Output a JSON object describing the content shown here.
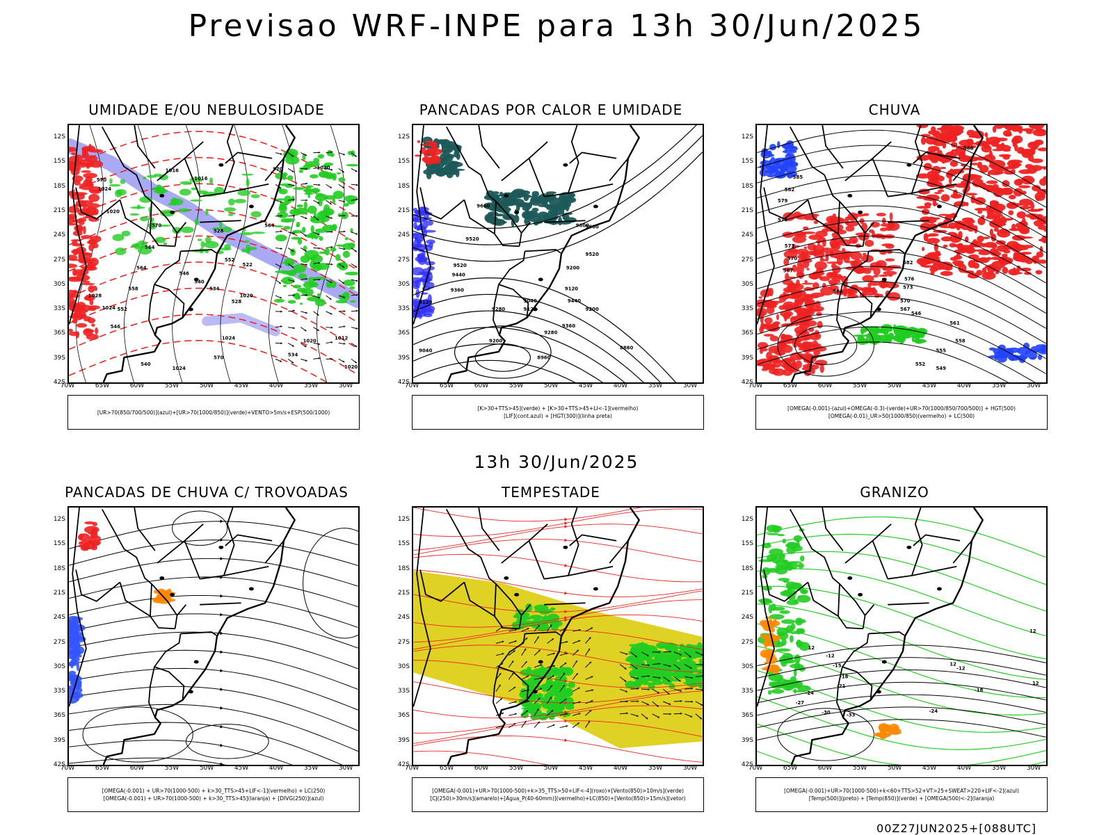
{
  "main_title": "Previsao WRF-INPE  para 13h 30/Jun/2025",
  "sub_title": "13h 30/Jun/2025",
  "footer": "00Z27JUN2025+[088UTC]",
  "lat_labels": [
    "12S",
    "15S",
    "18S",
    "21S",
    "24S",
    "27S",
    "30S",
    "33S",
    "36S",
    "39S",
    "42S"
  ],
  "lon_labels": [
    "70W",
    "65W",
    "60W",
    "55W",
    "50W",
    "45W",
    "40W",
    "35W",
    "30W"
  ],
  "panels": [
    {
      "title": "UMIDADE E/OU NEBULOSIDADE",
      "legend": [
        "[UR>70(850/700/500)](azul)+[UR>70(1000/850)](verde)+VENTO>5m/s+ESP(500/1000)"
      ],
      "contour_labels": [
        "1016",
        "1016",
        "1020",
        "1020",
        "1024",
        "1020",
        "1024",
        "1028",
        "1024",
        "1020",
        "1012",
        "1020",
        "1024",
        "570",
        "570",
        "564",
        "564",
        "558",
        "552",
        "546",
        "540",
        "534",
        "528",
        "522",
        "552",
        "546",
        "540",
        "534",
        "528",
        "570",
        "570",
        "564"
      ]
    },
    {
      "title": "PANCADAS POR CALOR E UMIDADE",
      "legend": [
        "[K>30+TTS>45](verde) + [K>30+TTS>45+LI<-1](vermelho)",
        "[LIF](cont.azul) + [HGT(300)](linha preta)"
      ],
      "contour_labels": [
        "9600",
        "9520",
        "9600",
        "9520",
        "9440",
        "9360",
        "9280",
        "9200",
        "9120",
        "9440",
        "9360",
        "9280",
        "9200",
        "9120",
        "9040",
        "8960",
        "8880",
        "9520",
        "9040",
        "9120",
        "9200",
        "9600"
      ]
    },
    {
      "title": "CHUVA",
      "legend": [
        "[OMEGA(-0.001)-(azul)+OMEGA(-0.3)-(verde)+UR>70(1000/850/700/500)] + HGT(500)",
        "[OMEGA(-0.01)_UR>50(1000/850)(vermelho) + LC(500)"
      ],
      "contour_labels": [
        "588",
        "585",
        "582",
        "579",
        "576",
        "573",
        "570",
        "567",
        "564",
        "561",
        "558",
        "555",
        "552",
        "549",
        "546",
        "582",
        "576",
        "573",
        "570",
        "567"
      ]
    },
    {
      "title": "PANCADAS DE CHUVA C/ TROVOADAS",
      "legend": [
        "[OMEGA(-0.001) + UR>70(1000-500) + k>30_TTS>45+LIF<-1](vermelho) + LC(250)",
        "[OMEGA(-0.001) + UR>70(1000-500) + k>30_TTS>45](laranja) + [DIVG(250)](azul)"
      ],
      "contour_labels": []
    },
    {
      "title": "TEMPESTADE",
      "legend": [
        "[OMEGA(-0.001)+UR>70(1000-500)+k>35_TTS>50+LIF<-4](roxo)+[Vento(850)>10m/s](verde)",
        "[CJ(250)>30m/s](amarelo)+[Agua_P(40-60mm)](vermelho)+LC(850)+[Vento(850)>15m/s](vetor)"
      ],
      "contour_labels": []
    },
    {
      "title": "GRANIZO",
      "legend": [
        "[OMEGA(-0.001)+UR>70(1000-500)+k<60+TTS>52+VT>25+SWEAT>220+LIF<-2](azul)",
        "[Temp(500)](preto) + [Temp(850)](verde) + [OMEGA(500)<-2](laranja)"
      ],
      "contour_labels": [
        "-12",
        "-15",
        "-18",
        "-21",
        "-24",
        "-27",
        "-30",
        "-33",
        "-24",
        "-18",
        "-12",
        "12",
        "12",
        "12",
        "12"
      ]
    }
  ]
}
